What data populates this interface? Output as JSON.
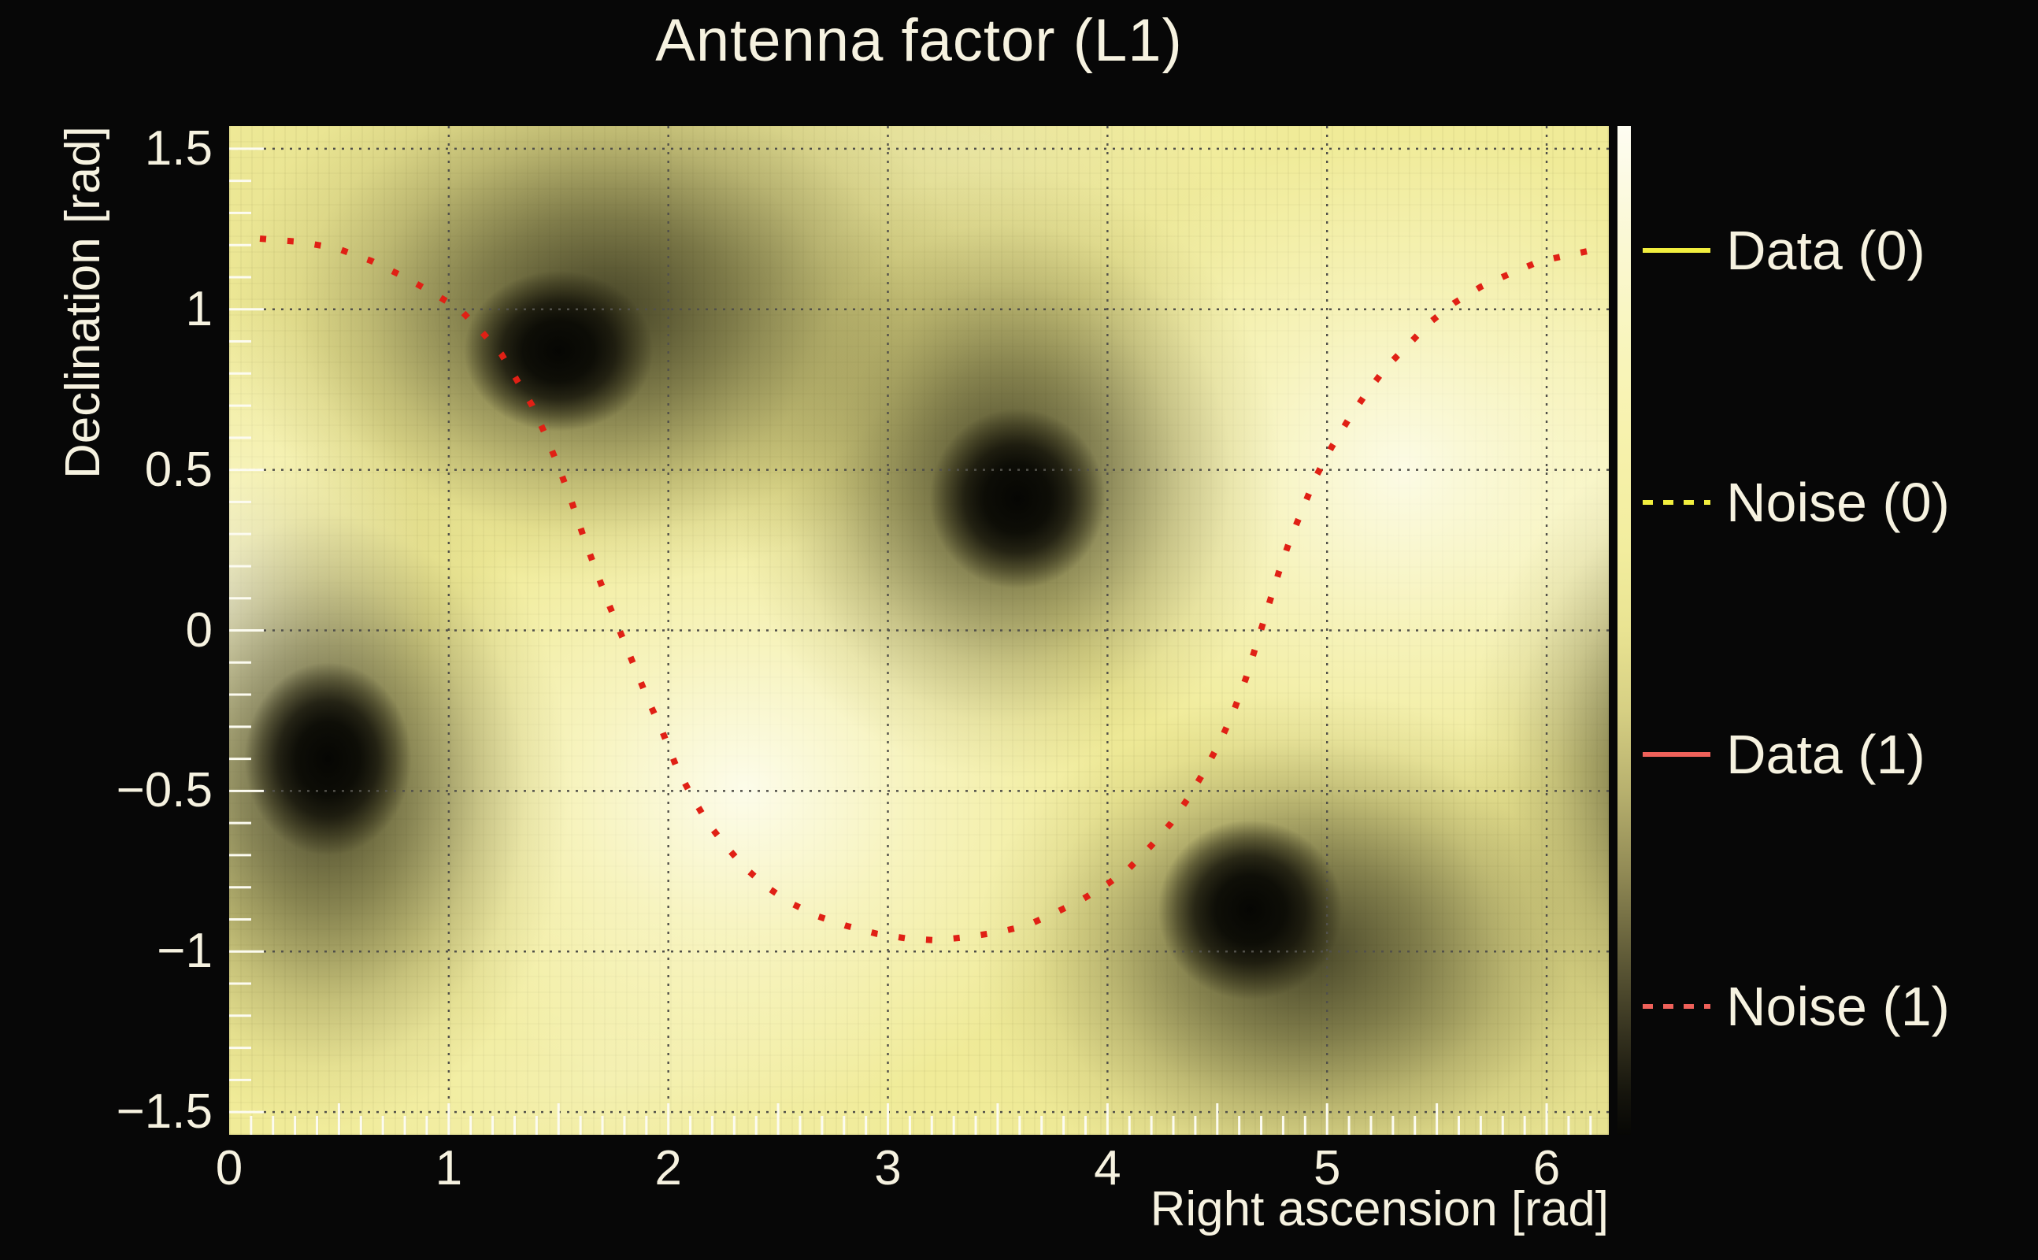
{
  "chart_data": {
    "type": "heatmap",
    "title": "Antenna factor (L1)",
    "xlabel": "Right ascension [rad]",
    "ylabel": "Declination [rad]",
    "x_range": [
      0,
      6.2832
    ],
    "y_range": [
      -1.5708,
      1.5708
    ],
    "grid": true,
    "x_ticks": [
      {
        "v": 0,
        "label": "0"
      },
      {
        "v": 1,
        "label": "1"
      },
      {
        "v": 2,
        "label": "2"
      },
      {
        "v": 3,
        "label": "3"
      },
      {
        "v": 4,
        "label": "4"
      },
      {
        "v": 5,
        "label": "5"
      },
      {
        "v": 6,
        "label": "6"
      }
    ],
    "y_ticks": [
      {
        "v": 1.5,
        "label": "1.5"
      },
      {
        "v": 1.0,
        "label": "1"
      },
      {
        "v": 0.5,
        "label": "0.5"
      },
      {
        "v": 0.0,
        "label": "0"
      },
      {
        "v": -0.5,
        "label": "−0.5"
      },
      {
        "v": -1.0,
        "label": "−1"
      },
      {
        "v": -1.5,
        "label": "−1.5"
      }
    ],
    "base_color": "#f0eb98",
    "palette": {
      "description": "antenna-factor magnitude: cream = maximum sensitivity, black = null",
      "stops": [
        {
          "pos": 0,
          "color": "#fefdf2"
        },
        {
          "pos": 8,
          "color": "#fbf9dc"
        },
        {
          "pos": 18,
          "color": "#f9f6c4"
        },
        {
          "pos": 30,
          "color": "#f7f2ae"
        },
        {
          "pos": 42,
          "color": "#f2ed9e"
        },
        {
          "pos": 50,
          "color": "#e9e392"
        },
        {
          "pos": 58,
          "color": "#d6cf83"
        },
        {
          "pos": 66,
          "color": "#b7b06e"
        },
        {
          "pos": 74,
          "color": "#918a55"
        },
        {
          "pos": 82,
          "color": "#625d39"
        },
        {
          "pos": 90,
          "color": "#35321f"
        },
        {
          "pos": 96,
          "color": "#15140c"
        },
        {
          "pos": 100,
          "color": "#070705"
        }
      ]
    },
    "nulls": [
      {
        "ra": 1.5,
        "dec": 0.87,
        "core_rx": 0.43,
        "core_ry": 0.25,
        "halo_rx": 1.7,
        "halo_ry": 0.85,
        "halo_dx": 0.2,
        "halo_dy": 0.12,
        "haze_rx": 2.5,
        "haze_ry": 0.95,
        "haze_dx": 0.6,
        "haze_dy": 0.32,
        "haze_a": 0.22
      },
      {
        "ra": 3.59,
        "dec": 0.41,
        "core_rx": 0.4,
        "core_ry": 0.28,
        "halo_rx": 1.25,
        "halo_ry": 0.95,
        "halo_dx": -0.05,
        "halo_dy": 0.08
      },
      {
        "ra": 0.45,
        "dec": -0.4,
        "core_rx": 0.38,
        "core_ry": 0.3,
        "halo_rx": 1.1,
        "halo_ry": 1.05,
        "halo_dx": 0.0,
        "halo_dy": -0.1
      },
      {
        "ra": 4.65,
        "dec": -0.87,
        "core_rx": 0.42,
        "core_ry": 0.28,
        "halo_rx": 1.5,
        "halo_ry": 0.8,
        "halo_dx": 0.25,
        "halo_dy": -0.12,
        "haze_rx": 2.2,
        "haze_ry": 0.7,
        "haze_dx": 0.85,
        "haze_dy": -0.35,
        "haze_a": 0.18
      },
      {
        "ra": 6.73,
        "dec": -0.4,
        "core_rx": 0.38,
        "core_ry": 0.3,
        "halo_rx": 1.1,
        "halo_ry": 1.05,
        "halo_dx": 0.0,
        "halo_dy": -0.05
      }
    ],
    "maxima": [
      {
        "ra": 2.35,
        "dec": -0.5,
        "rx": 1.7,
        "ry": 1.0,
        "a": 0.85
      },
      {
        "ra": 5.35,
        "dec": 0.5,
        "rx": 1.7,
        "ry": 1.05,
        "a": 0.8
      },
      {
        "ra": 0.0,
        "dec": 0.08,
        "rx": 0.9,
        "ry": 0.95,
        "a": 0.7
      },
      {
        "ra": 6.28,
        "dec": 0.35,
        "rx": 0.7,
        "ry": 0.8,
        "a": 0.35
      },
      {
        "ra": 1.7,
        "dec": -1.4,
        "rx": 1.5,
        "ry": 0.55,
        "a": 0.25
      },
      {
        "ra": 3.3,
        "dec": 1.5,
        "rx": 1.6,
        "ry": 0.5,
        "a": 0.2
      }
    ],
    "noise_trace": {
      "name": "Noise (1)",
      "style": "dotted",
      "color": "#e02015",
      "points": [
        [
          0.14,
          1.22
        ],
        [
          0.32,
          1.21
        ],
        [
          0.49,
          1.19
        ],
        [
          0.65,
          1.15
        ],
        [
          0.8,
          1.1
        ],
        [
          0.93,
          1.05
        ],
        [
          1.05,
          1.0
        ],
        [
          1.15,
          0.93
        ],
        [
          1.24,
          0.86
        ],
        [
          1.31,
          0.78
        ],
        [
          1.38,
          0.7
        ],
        [
          1.44,
          0.61
        ],
        [
          1.5,
          0.51
        ],
        [
          1.56,
          0.4
        ],
        [
          1.62,
          0.28
        ],
        [
          1.68,
          0.17
        ],
        [
          1.73,
          0.08
        ],
        [
          1.79,
          -0.02
        ],
        [
          1.85,
          -0.12
        ],
        [
          1.91,
          -0.22
        ],
        [
          1.97,
          -0.31
        ],
        [
          2.04,
          -0.43
        ],
        [
          2.11,
          -0.52
        ],
        [
          2.18,
          -0.6
        ],
        [
          2.26,
          -0.67
        ],
        [
          2.35,
          -0.74
        ],
        [
          2.45,
          -0.8
        ],
        [
          2.56,
          -0.85
        ],
        [
          2.68,
          -0.89
        ],
        [
          2.81,
          -0.92
        ],
        [
          2.95,
          -0.945
        ],
        [
          3.09,
          -0.96
        ],
        [
          3.22,
          -0.965
        ],
        [
          3.36,
          -0.955
        ],
        [
          3.5,
          -0.94
        ],
        [
          3.63,
          -0.92
        ],
        [
          3.76,
          -0.88
        ],
        [
          3.88,
          -0.84
        ],
        [
          4.0,
          -0.79
        ],
        [
          4.1,
          -0.74
        ],
        [
          4.2,
          -0.67
        ],
        [
          4.29,
          -0.6
        ],
        [
          4.37,
          -0.52
        ],
        [
          4.44,
          -0.44
        ],
        [
          4.51,
          -0.35
        ],
        [
          4.57,
          -0.26
        ],
        [
          4.63,
          -0.15
        ],
        [
          4.68,
          -0.04
        ],
        [
          4.73,
          0.07
        ],
        [
          4.78,
          0.18
        ],
        [
          4.83,
          0.28
        ],
        [
          4.89,
          0.38
        ],
        [
          4.95,
          0.48
        ],
        [
          5.02,
          0.57
        ],
        [
          5.1,
          0.66
        ],
        [
          5.18,
          0.74
        ],
        [
          5.27,
          0.82
        ],
        [
          5.37,
          0.89
        ],
        [
          5.47,
          0.96
        ],
        [
          5.58,
          1.02
        ],
        [
          5.7,
          1.07
        ],
        [
          5.83,
          1.11
        ],
        [
          5.97,
          1.15
        ],
        [
          6.11,
          1.17
        ],
        [
          6.25,
          1.19
        ]
      ]
    },
    "legend_position": "right"
  },
  "legend": {
    "entries": [
      {
        "label": "Data (0)",
        "color": "#f1ee3e",
        "line": "solid"
      },
      {
        "label": "Noise (0)",
        "color": "#f1ee3e",
        "line": "dashed"
      },
      {
        "label": "Data (1)",
        "color": "#ef615a",
        "line": "solid"
      },
      {
        "label": "Noise (1)",
        "color": "#ef615a",
        "line": "dashed"
      }
    ]
  },
  "colors": {
    "background": "#070707",
    "text": "#f6f2e0",
    "gridline": "#51504a",
    "minor_tick": "#fcfbf0"
  }
}
